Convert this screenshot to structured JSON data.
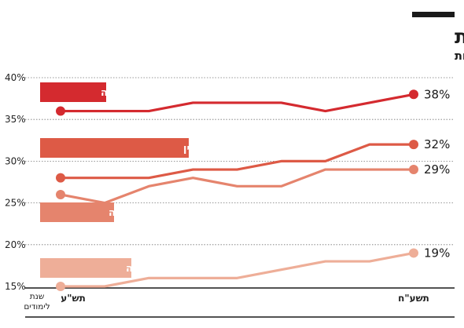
{
  "title": "גם באקדמיה הנוכחות הגברית דומיננטית",
  "subtitle": "שיעור הנשים בסגל האקדמי הבכיר באוניברסיטאות",
  "chart_data": {
    "type": "line",
    "x_unit_label_line1": "שנת",
    "x_unit_label_line2": "לימודים",
    "x_start_label": "תש\"ע",
    "x_end_label": "תשע\"ח",
    "y_ticks": [
      "40%",
      "35%",
      "30%",
      "25%",
      "20%",
      "15%"
    ],
    "y_tick_values": [
      40,
      35,
      30,
      25,
      20,
      15
    ],
    "ylim": [
      15,
      40
    ],
    "x_count": 9,
    "series": [
      {
        "name": "מרצה",
        "values": [
          36,
          36,
          36,
          37,
          37,
          37,
          36,
          37,
          38
        ],
        "end_label": "38%",
        "color": "#d42a2f"
      },
      {
        "name": "פרופסור מן המניין",
        "values": [
          28,
          28,
          28,
          29,
          29,
          30,
          30,
          32,
          32
        ],
        "end_label": "32%",
        "color": "#dd5a46"
      },
      {
        "name": "מרצה בכירה",
        "values": [
          26,
          25,
          27,
          28,
          27,
          27,
          29,
          29,
          29
        ],
        "end_label": "29%",
        "color": "#e5846d"
      },
      {
        "name": "פרופסור חברה",
        "values": [
          15,
          15,
          16,
          16,
          16,
          17,
          18,
          18,
          19
        ],
        "end_label": "19%",
        "color": "#eeae98"
      }
    ]
  }
}
